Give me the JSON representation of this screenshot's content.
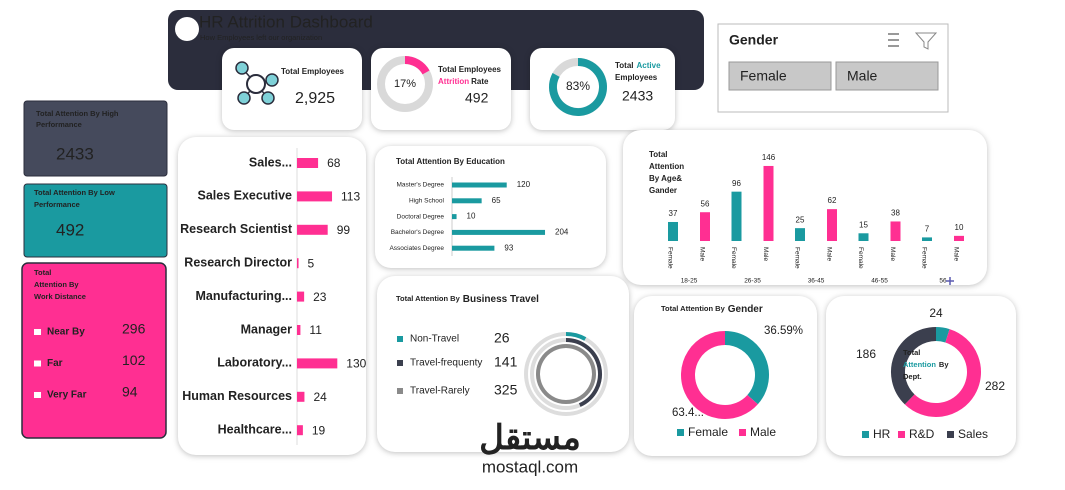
{
  "header": {
    "title": "HR Attrition Dashboard",
    "subtitle": "How Employees left our organization"
  },
  "total_employees": {
    "label": "Total Employees",
    "value": 2925,
    "value_label": "2,925"
  },
  "attrition_rate": {
    "label": [
      "Total Employees",
      "Attrition",
      "Rate"
    ],
    "percent": 17,
    "percent_label": "17%",
    "value": 492,
    "color": "#ff2f92"
  },
  "active_employees": {
    "label": [
      "Total",
      "Active",
      "Employees"
    ],
    "percent": 83,
    "percent_label": "83%",
    "value": 2433,
    "color": "#1a9aa0"
  },
  "gender_filter": {
    "title": "Gender",
    "options": [
      "Female",
      "Male"
    ]
  },
  "high_performance": {
    "label": [
      "Total Attention By High",
      "Performance"
    ],
    "value": 2433
  },
  "low_performance": {
    "label": [
      "Total Attention By Low",
      "Performance"
    ],
    "value": 492
  },
  "work_distance": {
    "title": [
      "Total",
      "Attention By",
      "Work Distance"
    ],
    "categories": [
      "Near By",
      "Far",
      "Very Far"
    ],
    "values": [
      296,
      102,
      94
    ]
  },
  "job_role": {
    "categories": [
      "Sales...",
      "Sales Executive",
      "Research Scientist",
      "Research Director",
      "Manufacturing...",
      "Manager",
      "Laboratory...",
      "Human Resources",
      "Healthcare..."
    ],
    "values": [
      68,
      113,
      99,
      5,
      23,
      11,
      130,
      24,
      19
    ],
    "color": "#ff2f92"
  },
  "education": {
    "title": "Total Attention By Education",
    "categories": [
      "Master's Degree",
      "High School",
      "Doctoral Degree",
      "Bachelor's Degree",
      "Associates Degree"
    ],
    "values": [
      120,
      65,
      10,
      204,
      93
    ],
    "color": "#1a9aa0"
  },
  "age_gender": {
    "title": [
      "Total",
      "Attention",
      "By Age&",
      "Gander"
    ],
    "categories": [
      "18-25",
      "26-35",
      "36-45",
      "46-55",
      "56"
    ],
    "series": [
      {
        "name": "Female",
        "color": "#1a9aa0",
        "values": [
          37,
          96,
          25,
          15,
          7
        ]
      },
      {
        "name": "Male",
        "color": "#ff2f92",
        "values": [
          56,
          146,
          62,
          38,
          10
        ]
      }
    ]
  },
  "business_travel": {
    "title": [
      "Total Attention By",
      "Business Travel"
    ],
    "categories": [
      "Non-Travel",
      "Travel-frequenty",
      "Travel-Rarely"
    ],
    "values": [
      26,
      141,
      325
    ],
    "colors": [
      "#1a9aa0",
      "#3b3f4e",
      "#8a8a8a"
    ]
  },
  "gender": {
    "title": [
      "Total Attention By",
      "Gender"
    ],
    "categories": [
      "Female",
      "Male"
    ],
    "values": [
      36.59,
      63.41
    ],
    "value_labels": [
      "36.59%",
      "63.4..."
    ],
    "colors": [
      "#1a9aa0",
      "#ff2f92"
    ]
  },
  "department": {
    "title": [
      "Total",
      "Attention",
      "By",
      "Dept."
    ],
    "categories": [
      "HR",
      "R&D",
      "Sales"
    ],
    "values": [
      24,
      282,
      186
    ],
    "colors": [
      "#1a9aa0",
      "#ff2f92",
      "#3b3f4e"
    ]
  },
  "watermark": [
    "مستقل",
    "mostaql.com"
  ]
}
